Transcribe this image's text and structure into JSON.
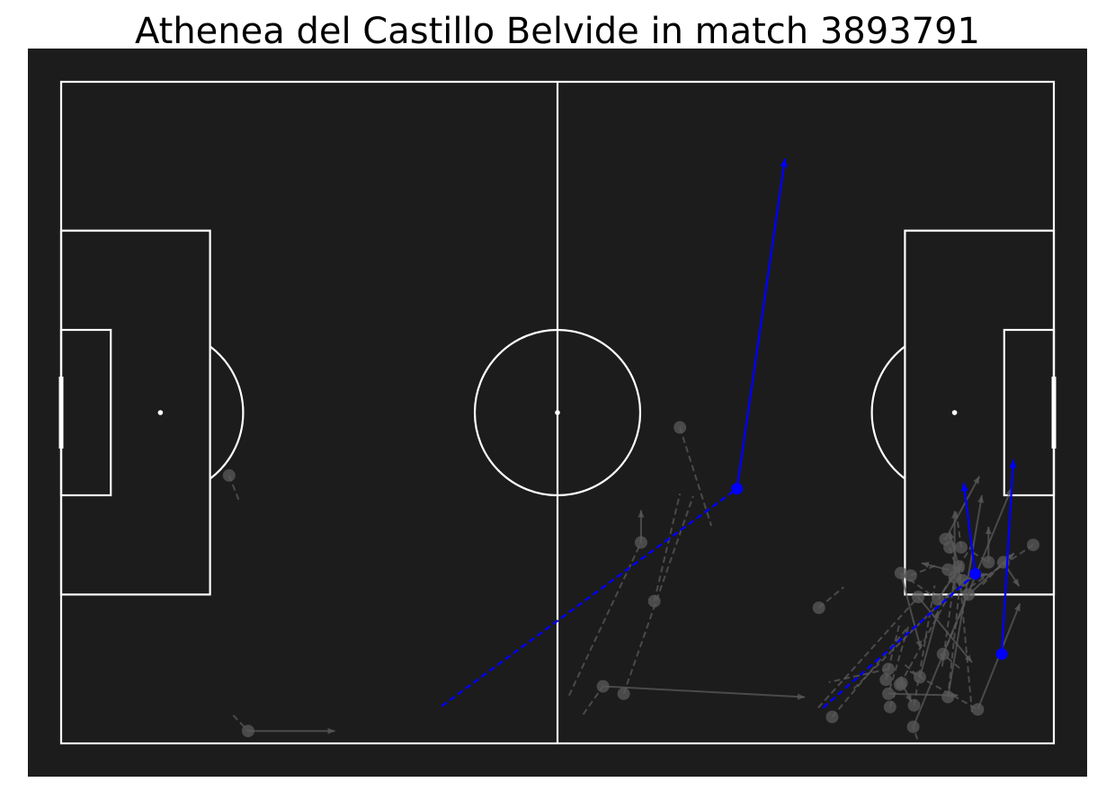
{
  "chart_data": {
    "type": "scatter",
    "title": "Athenea del Castillo Belvide in match 3893791",
    "pitch": {
      "length": 120,
      "width": 80,
      "background": "#1c1c1c",
      "line_color": "#ffffff"
    },
    "colors": {
      "highlight": "#0000ff",
      "other": "#5a5a5a"
    },
    "highlighted_actions": [
      {
        "name": "highlight-action-1",
        "carry": [
          46,
          75.5,
          81.7,
          49.2
        ],
        "pass": [
          81.7,
          49.2,
          87.5,
          9.3
        ]
      },
      {
        "name": "highlight-action-2",
        "carry": [
          92.1,
          75.7,
          110.5,
          59.5
        ],
        "pass": [
          110.5,
          59.5,
          109.1,
          48.5
        ]
      },
      {
        "name": "highlight-action-3",
        "carry": null,
        "pass": [
          113.7,
          69.2,
          115.1,
          45.7
        ]
      }
    ],
    "other_actions": [
      {
        "carry": [
          20.8,
          76.6,
          22.6,
          78.5
        ],
        "pass": [
          22.6,
          78.5,
          33.1,
          78.5
        ]
      },
      {
        "carry": [
          20.3,
          47.6,
          21.6,
          50.9
        ],
        "pass": null
      },
      {
        "carry": [
          68.0,
          74.0,
          76.4,
          50.1
        ],
        "pass": null
      },
      {
        "carry": [
          71.7,
          62.8,
          74.8,
          49.8
        ],
        "pass": null
      },
      {
        "carry": [
          74.8,
          41.8,
          78.6,
          53.7
        ],
        "pass": null
      },
      {
        "carry": [
          61.4,
          74.2,
          70.1,
          55.7
        ],
        "pass": [
          70.1,
          55.7,
          70.1,
          51.8
        ]
      },
      {
        "carry": [
          63.1,
          76.5,
          65.5,
          73.1
        ],
        "pass": [
          65.5,
          73.1,
          89.9,
          74.4
        ]
      },
      {
        "carry": [
          91.6,
          63.6,
          94.6,
          61.1
        ],
        "pass": null
      },
      {
        "carry": [
          93.2,
          76.8,
          102.4,
          65.9
        ],
        "pass": null
      },
      {
        "carry": [
          103.1,
          75.4,
          105.6,
          60.9
        ],
        "pass": null
      },
      {
        "carry": [
          106.5,
          70.7,
          108.0,
          59.9
        ],
        "pass": [
          108.0,
          59.9,
          108.0,
          51.9
        ]
      },
      {
        "carry": [
          102.7,
          59.7,
          105.7,
          58.5
        ],
        "pass": null
      },
      {
        "carry": [
          110.2,
          56.9,
          112.1,
          58.1
        ],
        "pass": [
          112.1,
          58.1,
          112.1,
          53.8
        ]
      },
      {
        "carry": [
          107.4,
          56.3,
          108.5,
          59.6
        ],
        "pass": null
      },
      {
        "carry": [
          108.8,
          56.3,
          108.2,
          52.0
        ],
        "pass": null
      },
      {
        "carry": [
          103.5,
          79.5,
          103.0,
          78.0
        ],
        "pass": [
          103.0,
          78.0,
          114.9,
          49.1
        ]
      },
      {
        "carry": [
          106.7,
          55.2,
          106.9,
          55.3
        ],
        "pass": [
          106.9,
          55.3,
          111.0,
          47.7
        ]
      },
      {
        "carry": [
          108.9,
          58.3,
          107.2,
          74.4
        ],
        "pass": [
          107.2,
          74.4,
          111.3,
          50.0
        ]
      },
      {
        "carry": [
          110.2,
          55.9,
          106.0,
          62.6
        ],
        "pass": [
          106.0,
          62.6,
          108.8,
          58.4
        ]
      },
      {
        "carry": [
          108.5,
          58.6,
          107.2,
          59.0
        ],
        "pass": [
          107.2,
          59.0,
          104.0,
          58.2
        ]
      },
      {
        "carry": [
          117.5,
          56.0,
          108.5,
          62.0
        ],
        "pass": null
      },
      {
        "carry": [
          105.1,
          62.0,
          101.5,
          59.4
        ],
        "pass": [
          101.5,
          59.4,
          103.9,
          68.5
        ]
      },
      {
        "carry": [
          101.4,
          72.9,
          109.1,
          58.9
        ],
        "pass": null
      },
      {
        "carry": [
          100.0,
          71.0,
          92.8,
          72.6
        ],
        "pass": null
      },
      {
        "carry": [
          91.5,
          75.7,
          103.6,
          62.3
        ],
        "pass": [
          103.6,
          62.3,
          110.1,
          70.2
        ]
      },
      {
        "carry": [
          102.4,
          65.9,
          100.0,
          74.0
        ],
        "pass": [
          100.0,
          74.0,
          108.4,
          74.2
        ]
      },
      {
        "carry": [
          102.6,
          71.3,
          110.8,
          75.9
        ],
        "pass": [
          110.8,
          75.9,
          115.9,
          63.1
        ]
      },
      {
        "carry": [
          102.0,
          70.5,
          103.8,
          72.0
        ],
        "pass": [
          103.8,
          72.0,
          106.0,
          64.0
        ]
      },
      {
        "carry": [
          95.8,
          73.4,
          109.0,
          60.3
        ],
        "pass": [
          109.0,
          60.3,
          112.0,
          59.5
        ]
      },
      {
        "carry": [
          101.6,
          73.0,
          101.6,
          72.7
        ],
        "pass": [
          101.6,
          72.7,
          102.8,
          75.0
        ]
      },
      {
        "carry": [
          108.6,
          70.9,
          106.6,
          69.2
        ],
        "pass": [
          106.6,
          69.2,
          106.6,
          70.0
        ]
      },
      {
        "carry": [
          99.7,
          72.3,
          101.3,
          65.7
        ],
        "pass": null
      },
      {
        "carry": [
          100.2,
          75.6,
          101.6,
          71.9
        ],
        "pass": null
      },
      {
        "carry": [
          106.6,
          69.3,
          109.7,
          62.0
        ],
        "pass": [
          109.7,
          62.0,
          115.2,
          57.0
        ]
      },
      {
        "carry": [
          110.1,
          76.2,
          108.5,
          58.6
        ],
        "pass": [
          108.5,
          58.6,
          107.4,
          54.4
        ]
      },
      {
        "carry": [
          111.4,
          60.8,
          113.9,
          58.1
        ],
        "pass": [
          113.9,
          58.1,
          115.8,
          61.0
        ]
      }
    ]
  }
}
